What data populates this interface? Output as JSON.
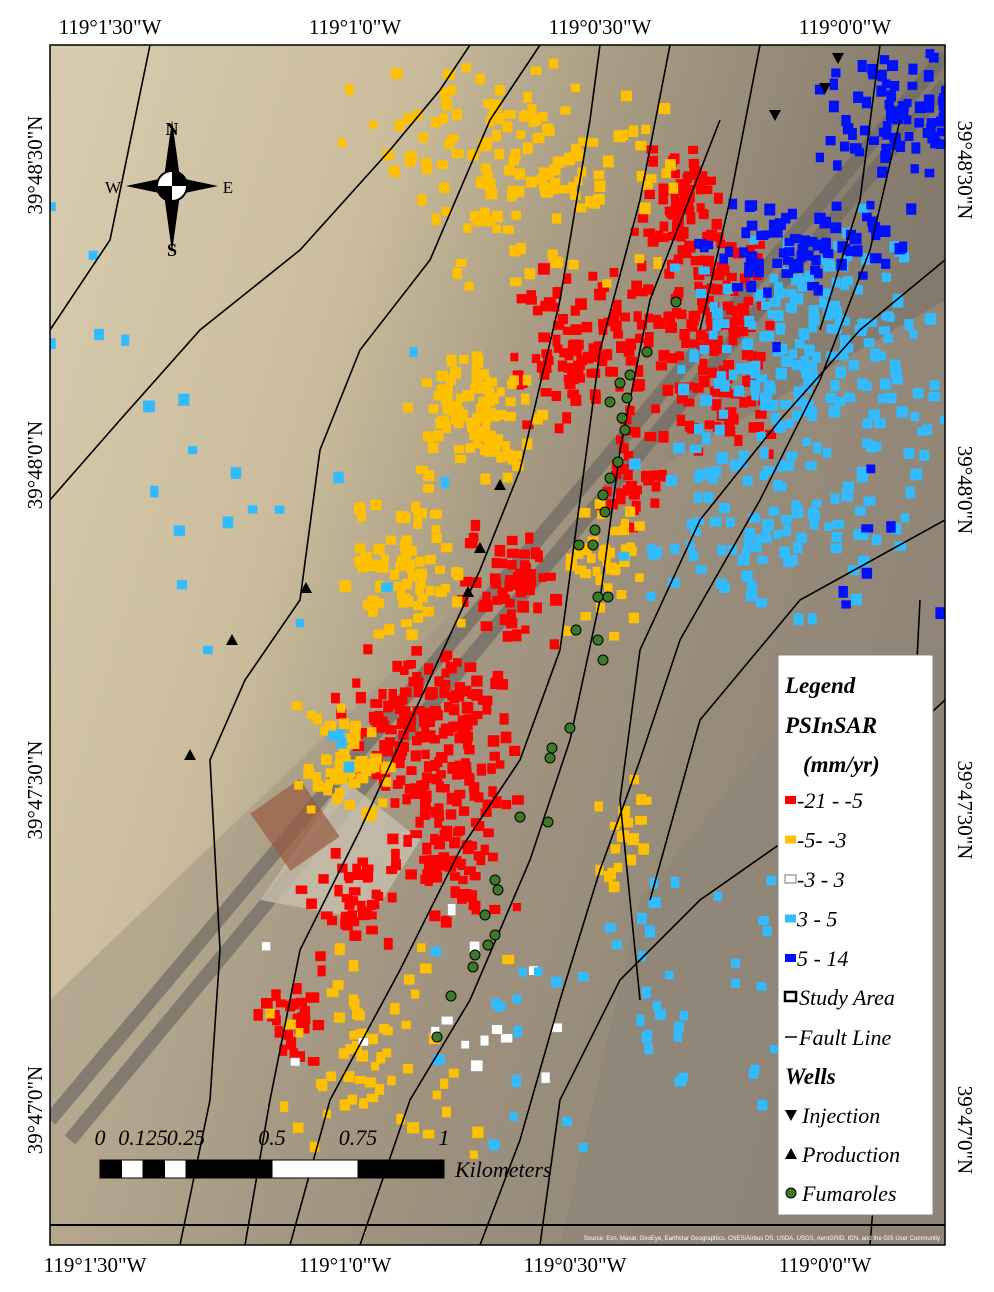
{
  "axes": {
    "top": [
      "119°1'30\"W",
      "119°1'0\"W",
      "119°0'30\"W",
      "119°0'0\"W"
    ],
    "bottom": [
      "119°1'30\"W",
      "119°1'0\"W",
      "119°0'30\"W",
      "119°0'0\"W"
    ],
    "left": [
      "39°48'30\"N",
      "39°48'0\"N",
      "39°47'30\"N",
      "39°47'0\"N"
    ],
    "right": [
      "39°48'30\"N",
      "39°48'0\"N",
      "39°47'30\"N",
      "39°47'0\"N"
    ]
  },
  "compass": {
    "N": "N",
    "S": "S",
    "E": "E",
    "W": "W"
  },
  "legend": {
    "title": "Legend",
    "layer": "PSInSAR",
    "unit": "(mm/yr)",
    "classes": [
      {
        "label": "-21 - -5",
        "color": "#ff0000"
      },
      {
        "label": "-5- -3",
        "color": "#ffc000"
      },
      {
        "label": "-3 - 3",
        "color": "#ffffff"
      },
      {
        "label": "3 - 5",
        "color": "#33bbff"
      },
      {
        "label": "5 - 14",
        "color": "#0010ff"
      }
    ],
    "study_area": "Study Area",
    "fault_line": "Fault Line",
    "wells_title": "Wells",
    "wells": [
      {
        "label": "Injection"
      },
      {
        "label": "Production"
      },
      {
        "label": "Fumaroles"
      }
    ]
  },
  "scale_bar": {
    "ticks": [
      0,
      0.125,
      0.25,
      0.5,
      0.75,
      1
    ],
    "unit": "Kilometers"
  },
  "attribution": "Source: Esri, Maxar, GeoEye, Earthstar Geographics, CNES/Airbus DS, USDA, USGS, AeroGRID, IGN, and the GIS User Community"
}
